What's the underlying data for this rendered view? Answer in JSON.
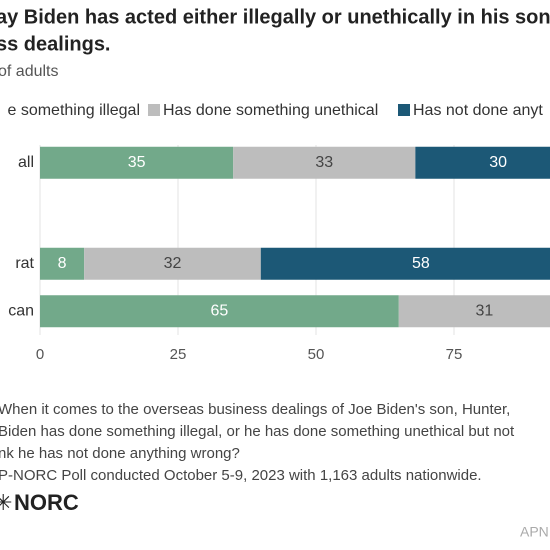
{
  "chart_data": {
    "type": "stacked-barh",
    "title": [
      "ay Biden has acted either illegally or unethically in his son",
      "ss dealings."
    ],
    "subtitle": "of adults",
    "categories": [
      "all",
      null,
      "rat",
      "can"
    ],
    "series": [
      {
        "name": "e something illegal",
        "color": "#72a98a",
        "values": [
          35,
          null,
          8,
          65
        ]
      },
      {
        "name": "Has done something unethical",
        "color": "#bdbdbd",
        "values": [
          33,
          null,
          32,
          31
        ]
      },
      {
        "name": "Has not done anyt",
        "color": "#1c5876",
        "values": [
          30,
          null,
          58,
          null
        ]
      }
    ],
    "xlim": [
      0,
      100
    ],
    "xticks": [
      0,
      25,
      50,
      75
    ],
    "grid": true,
    "notes": [
      "When it comes to the overseas business dealings of Joe Biden's son, Hunter,",
      "Biden has done something illegal, or he has done something unethical but not",
      "nk he has not done anything wrong?",
      "P-NORC Poll conducted October 5-9, 2023 with 1,163 adults nationwide."
    ],
    "logo": "NORC",
    "credit": "APN"
  }
}
